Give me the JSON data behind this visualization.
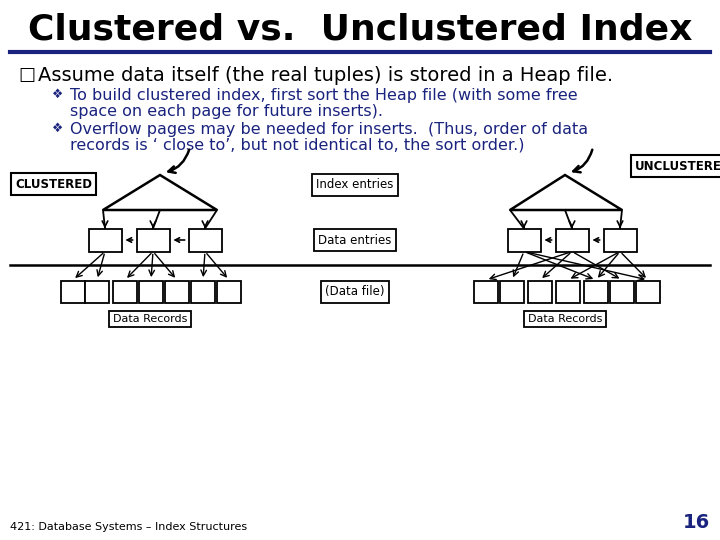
{
  "title": "Clustered vs.  Unclustered Index",
  "title_color": "#000000",
  "title_fontsize": 26,
  "separator_color": "#1a237e",
  "bullet_text": "Assume data itself (the real tuples) is stored in a Heap file.",
  "bullet_color": "#000000",
  "bullet_fontsize": 14,
  "sub_bullet_color": "#1a237e",
  "sub_bullet_fontsize": 11.5,
  "sub_bullet_1_line1": "To build clustered index, first sort the Heap file (with some free",
  "sub_bullet_1_line2": "space on each page for future inserts).",
  "sub_bullet_2_line1": "Overflow pages may be needed for inserts.  (Thus, order of data",
  "sub_bullet_2_line2": "records is ‘ close to’, but not identical to, the sort order.)",
  "footer_text": "421: Database Systems – Index Structures",
  "page_number": "16",
  "page_number_color": "#1a237e",
  "background_color": "#ffffff",
  "clustered_label": "CLUSTERED",
  "unclustered_label": "UNCLUSTERED",
  "index_entries_label": "Index entries",
  "data_entries_label": "Data entries",
  "data_file_label": "(Data file)",
  "data_records_label": "Data Records"
}
